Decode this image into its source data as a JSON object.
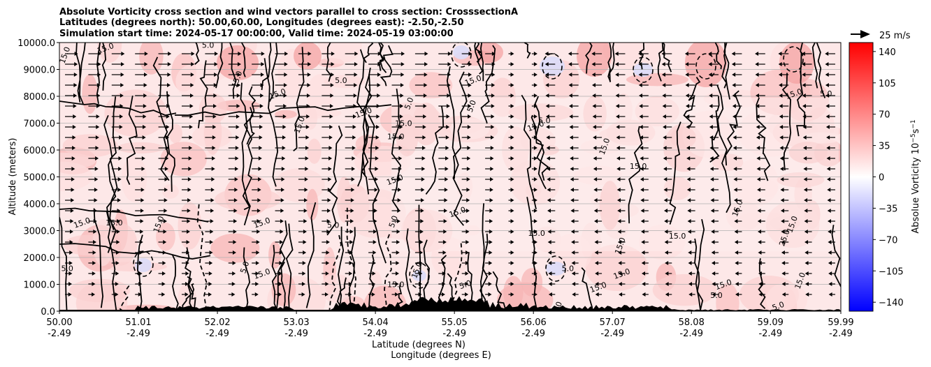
{
  "chart_data": {
    "type": "heatmap",
    "title_lines": [
      "Absolute Vorticity cross section and wind vectors parallel to cross section: CrosssectionA",
      "Latitudes (degrees north): 50.00,60.00, Longitudes (degrees east): -2.50,-2.50",
      "Simulation start time: 2024-05-17 00:00:00, Valid time: 2024-05-19 03:00:00"
    ],
    "ylabel": "Altitude (meters)",
    "xlabel_line1": "Latitude (degrees N)",
    "xlabel_line2": "Longitude (degrees E)",
    "ylim": [
      0,
      10000
    ],
    "yticks": [
      "0.0",
      "1000.0",
      "2000.0",
      "3000.0",
      "4000.0",
      "5000.0",
      "6000.0",
      "7000.0",
      "8000.0",
      "9000.0",
      "10000.0"
    ],
    "xlim": [
      50.0,
      59.99
    ],
    "xticks": [
      {
        "lat": "50.00",
        "lon": "-2.49",
        "pos": 50.0
      },
      {
        "lat": "51.01",
        "lon": "-2.49",
        "pos": 51.01
      },
      {
        "lat": "52.02",
        "lon": "-2.49",
        "pos": 52.02
      },
      {
        "lat": "53.03",
        "lon": "-2.49",
        "pos": 53.03
      },
      {
        "lat": "54.04",
        "lon": "-2.49",
        "pos": 54.04
      },
      {
        "lat": "55.05",
        "lon": "-2.49",
        "pos": 55.05
      },
      {
        "lat": "56.06",
        "lon": "-2.49",
        "pos": 56.06
      },
      {
        "lat": "57.07",
        "lon": "-2.49",
        "pos": 57.07
      },
      {
        "lat": "58.08",
        "lon": "-2.49",
        "pos": 58.08
      },
      {
        "lat": "59.09",
        "lon": "-2.49",
        "pos": 59.09
      },
      {
        "lat": "59.99",
        "lon": "-2.49",
        "pos": 59.99
      }
    ],
    "colorbar": {
      "label": "Absolue Vorticity 10",
      "label_exp": "−5",
      "label_unit": "s",
      "label_unit_exp": "−1",
      "range": [
        -150,
        150
      ],
      "ticks": [
        "140",
        "105",
        "70",
        "35",
        "0",
        "−35",
        "−70",
        "−105",
        "−140"
      ],
      "tick_values": [
        140,
        105,
        70,
        35,
        0,
        -35,
        -70,
        -105,
        -140
      ],
      "colors": [
        "#0000ff",
        "#ffffff",
        "#ff0000"
      ]
    },
    "quiver_key": {
      "label": "25 m/s"
    },
    "contour_labels": [
      {
        "text": "15.0",
        "x": 50.1,
        "y": 9500
      },
      {
        "text": "15.0",
        "x": 50.6,
        "y": 9700
      },
      {
        "text": "5.0",
        "x": 51.9,
        "y": 9800
      },
      {
        "text": "15.0",
        "x": 52.3,
        "y": 8600
      },
      {
        "text": "15.0",
        "x": 52.8,
        "y": 8000
      },
      {
        "text": "5.0",
        "x": 53.6,
        "y": 8500
      },
      {
        "text": "15.0",
        "x": 53.1,
        "y": 6900
      },
      {
        "text": "15.0",
        "x": 53.9,
        "y": 7300
      },
      {
        "text": "15.0",
        "x": 54.3,
        "y": 6400
      },
      {
        "text": "5.0",
        "x": 54.5,
        "y": 7700
      },
      {
        "text": "15.0",
        "x": 54.3,
        "y": 4800
      },
      {
        "text": "15.0",
        "x": 54.4,
        "y": 6900
      },
      {
        "text": "5.0",
        "x": 55.3,
        "y": 7600
      },
      {
        "text": "15.0",
        "x": 55.3,
        "y": 8500
      },
      {
        "text": "5.0",
        "x": 56.2,
        "y": 7000
      },
      {
        "text": "15.0",
        "x": 57.0,
        "y": 6100
      },
      {
        "text": "15.0",
        "x": 56.1,
        "y": 6800
      },
      {
        "text": "15.0",
        "x": 57.4,
        "y": 5300
      },
      {
        "text": "15.0",
        "x": 58.7,
        "y": 3800
      },
      {
        "text": "15.0",
        "x": 59.4,
        "y": 8000
      },
      {
        "text": "5.0",
        "x": 59.8,
        "y": 8000
      },
      {
        "text": "15.0",
        "x": 59.4,
        "y": 3200
      },
      {
        "text": "15.0",
        "x": 50.3,
        "y": 3200
      },
      {
        "text": "15.0",
        "x": 50.7,
        "y": 3200
      },
      {
        "text": "15.0",
        "x": 51.3,
        "y": 3200
      },
      {
        "text": "15.0",
        "x": 52.6,
        "y": 3200
      },
      {
        "text": "5.0",
        "x": 53.5,
        "y": 3100
      },
      {
        "text": "5.0",
        "x": 54.3,
        "y": 3300
      },
      {
        "text": "15.0",
        "x": 55.1,
        "y": 3600
      },
      {
        "text": "15.0",
        "x": 56.1,
        "y": 2800
      },
      {
        "text": "15.0",
        "x": 57.2,
        "y": 2400
      },
      {
        "text": "15.0",
        "x": 57.2,
        "y": 1300
      },
      {
        "text": "5.0",
        "x": 50.1,
        "y": 1500
      },
      {
        "text": "5.0",
        "x": 52.4,
        "y": 1600
      },
      {
        "text": "15.0",
        "x": 52.6,
        "y": 1300
      },
      {
        "text": "15.0",
        "x": 54.3,
        "y": 900
      },
      {
        "text": "15.0",
        "x": 54.6,
        "y": 1500
      },
      {
        "text": "5.0",
        "x": 55.2,
        "y": 900
      },
      {
        "text": "5.0",
        "x": 56.5,
        "y": 1500
      },
      {
        "text": "5.0",
        "x": 56.4,
        "y": 100
      },
      {
        "text": "15.0",
        "x": 58.5,
        "y": 900
      },
      {
        "text": "5.0",
        "x": 58.4,
        "y": 500
      },
      {
        "text": "15.0",
        "x": 59.5,
        "y": 1100
      },
      {
        "text": "5.0",
        "x": 59.2,
        "y": 100
      },
      {
        "text": "15.0",
        "x": 57.9,
        "y": 2700
      },
      {
        "text": "25.0",
        "x": 59.3,
        "y": 2700
      },
      {
        "text": "15.0",
        "x": 56.9,
        "y": 800
      }
    ]
  }
}
